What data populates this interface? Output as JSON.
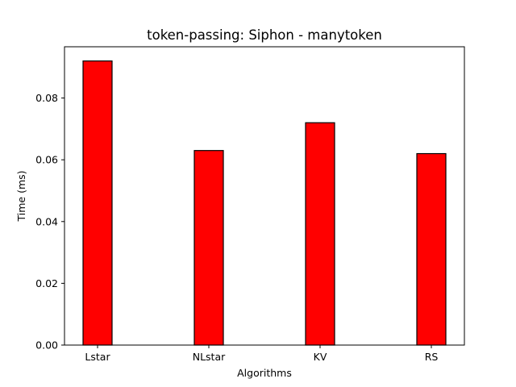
{
  "chart_data": {
    "type": "bar",
    "title": "token-passing: Siphon - manytoken",
    "xlabel": "Algorithms",
    "ylabel": "Time (ms)",
    "categories": [
      "Lstar",
      "NLstar",
      "KV",
      "RS"
    ],
    "values": [
      0.092,
      0.063,
      0.072,
      0.062
    ],
    "ylim": [
      0,
      0.0966
    ],
    "yticks": [
      "0.00",
      "0.02",
      "0.04",
      "0.06",
      "0.08"
    ],
    "bar_color": "#ff0000",
    "edge_color": "#000000",
    "grid": false,
    "legend": "none"
  }
}
